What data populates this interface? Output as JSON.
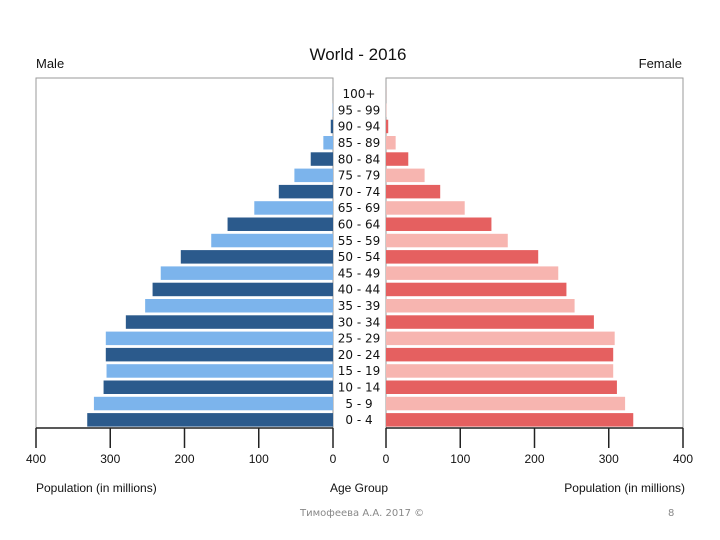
{
  "chart_data": {
    "type": "bar",
    "title": "World - 2016",
    "left_label": "Male",
    "right_label": "Female",
    "center_label": "Age Group",
    "xlabel_left": "Population (in millions)",
    "xlabel_right": "Population (in millions)",
    "xlim": [
      0,
      400
    ],
    "ticks": [
      0,
      100,
      200,
      300,
      400
    ],
    "categories": [
      "0 - 4",
      "5 - 9",
      "10 - 14",
      "15 - 19",
      "20 - 24",
      "25 - 29",
      "30 - 34",
      "35 - 39",
      "40 - 44",
      "45 - 49",
      "50 - 54",
      "55 - 59",
      "60 - 64",
      "65 - 69",
      "70 - 74",
      "75 - 79",
      "80 - 84",
      "85 - 89",
      "90 - 94",
      "95 - 99",
      "100+"
    ],
    "series": [
      {
        "name": "Male",
        "values": [
          331,
          322,
          309,
          305,
          306,
          306,
          279,
          253,
          243,
          232,
          205,
          164,
          142,
          106,
          73,
          52,
          30,
          13,
          3,
          0.5,
          0.1
        ]
      },
      {
        "name": "Female",
        "values": [
          333,
          322,
          311,
          306,
          306,
          308,
          280,
          254,
          243,
          232,
          205,
          164,
          142,
          106,
          73,
          52,
          30,
          13,
          3,
          0.5,
          0.1
        ]
      }
    ],
    "colors": {
      "male_dark": "#2b5a8c",
      "male_light": "#7cb4ec",
      "female_dark": "#e56060",
      "female_light": "#f7b5b0"
    }
  },
  "footer": {
    "credit": "Тимофеева А.А. 2017 ©",
    "page": "8"
  }
}
